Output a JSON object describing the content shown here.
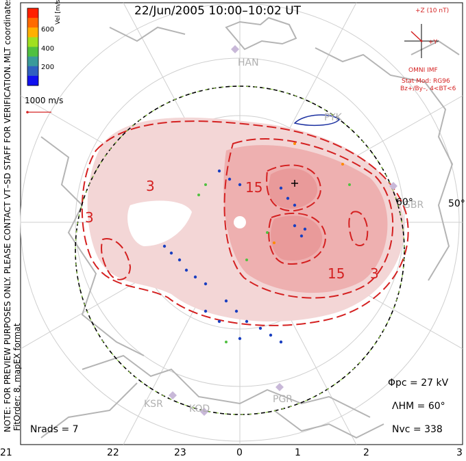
{
  "title": "22/Jun/2005  10:00–10:02  UT",
  "colorbar": {
    "label": "Vel [m/s]",
    "ticks": [
      "600",
      "400",
      "200"
    ],
    "colors": [
      "#ff2000",
      "#ff6a00",
      "#ffb000",
      "#a0e020",
      "#50c040",
      "#3a9a9a",
      "#3060c0",
      "#1010f0"
    ]
  },
  "side_label": "MLT coordinates",
  "preview_note": "NOTE: FOR PREVIEW PURPOSES ONLY. PLEASE CONTACT VT–SD STAFF FOR VERIFICATION.",
  "fit_order": "FitOrder: 8,  mapEX format",
  "reference_vector": "1000 m/s",
  "imf": {
    "scale": "+Z (10 nT)",
    "axis_y": "+Y",
    "source": "OMNI IMF",
    "stat_mod": "Stat Mod: RG96",
    "condition": "Bz+/By–, 4<BT<6"
  },
  "stations": [
    "HAN",
    "PYK",
    "GBR",
    "KSR",
    "KOD",
    "PGR"
  ],
  "latitude_labels": [
    "60°",
    "50°"
  ],
  "contour_labels": [
    "3",
    "3",
    "15",
    "15",
    "3"
  ],
  "mlt_labels": [
    "21",
    "22",
    "23",
    "0",
    "1",
    "2",
    "3"
  ],
  "stats": {
    "phi_pc": "Φpc  =  27 kV",
    "lambda_hm": "ΛHM  =  60°",
    "n_vc": "Nvc  =  338",
    "n_rads": "Nrads  =  7"
  },
  "colors": {
    "potential_fill": "#f3d6d6",
    "potential_fill_dark": "#eeb0b0",
    "contour": "#d42020",
    "land": "#b4b4b4",
    "grid": "#cfcfcf",
    "hmb": "#8fd040"
  }
}
